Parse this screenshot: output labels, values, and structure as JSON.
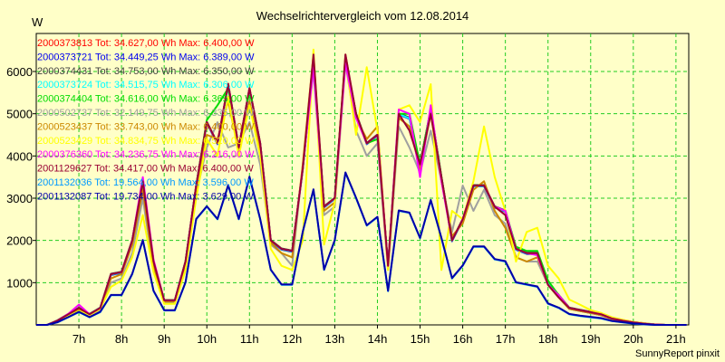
{
  "chart_data": {
    "type": "line",
    "title": "Wechselrichtervergleich vom 12.08.2014",
    "ylabel": "W",
    "footer": "SunnyReport pinxit",
    "ylim": [
      0,
      6900
    ],
    "xlim": [
      6,
      21.3
    ],
    "yticks": [
      1000,
      2000,
      3000,
      4000,
      5000,
      6000
    ],
    "xticks": [
      {
        "v": 7,
        "label": "7h"
      },
      {
        "v": 8,
        "label": "8h"
      },
      {
        "v": 9,
        "label": "9h"
      },
      {
        "v": 10,
        "label": "10h"
      },
      {
        "v": 11,
        "label": "11h"
      },
      {
        "v": 12,
        "label": "12h"
      },
      {
        "v": 13,
        "label": "13h"
      },
      {
        "v": 14,
        "label": "14h"
      },
      {
        "v": 15,
        "label": "15h"
      },
      {
        "v": 16,
        "label": "16h"
      },
      {
        "v": 17,
        "label": "17h"
      },
      {
        "v": 18,
        "label": "18h"
      },
      {
        "v": 19,
        "label": "19h"
      },
      {
        "v": 20,
        "label": "20h"
      },
      {
        "v": 21,
        "label": "21h"
      }
    ],
    "grid": true,
    "legend_position": "top-left",
    "x": [
      6.0,
      6.25,
      6.5,
      6.75,
      7.0,
      7.25,
      7.5,
      7.75,
      8.0,
      8.25,
      8.5,
      8.75,
      9.0,
      9.25,
      9.5,
      9.75,
      10.0,
      10.25,
      10.5,
      10.75,
      11.0,
      11.25,
      11.5,
      11.75,
      12.0,
      12.25,
      12.5,
      12.75,
      13.0,
      13.25,
      13.5,
      13.75,
      14.0,
      14.25,
      14.5,
      14.75,
      15.0,
      15.25,
      15.5,
      15.75,
      16.0,
      16.25,
      16.5,
      16.75,
      17.0,
      17.25,
      17.5,
      17.75,
      18.0,
      18.25,
      18.5,
      18.75,
      19.0,
      19.25,
      19.5,
      19.75,
      20.0,
      20.25,
      20.5,
      20.75,
      21.0,
      21.25
    ],
    "series": [
      {
        "label": "2000373813 Tot: 34.627,00 Wh Max: 6.400,00 W",
        "color": "#ff0000",
        "values": [
          0,
          0,
          100,
          250,
          400,
          250,
          400,
          1200,
          1250,
          2000,
          3400,
          1500,
          580,
          580,
          1500,
          3300,
          4800,
          4300,
          5700,
          4200,
          5600,
          4300,
          2000,
          1800,
          1750,
          3700,
          6200,
          2800,
          3000,
          6300,
          5000,
          4300,
          4500,
          1400,
          5000,
          4900,
          3800,
          5100,
          3500,
          2000,
          2500,
          3300,
          3300,
          2800,
          2700,
          1800,
          1700,
          1700,
          1000,
          700,
          400,
          350,
          300,
          250,
          150,
          100,
          60,
          30,
          10,
          0,
          0,
          0
        ]
      },
      {
        "label": "2000373721 Tot: 34.449,25 Wh Max: 6.389,00 W",
        "color": "#0000ee",
        "values": [
          0,
          0,
          90,
          240,
          390,
          240,
          390,
          1180,
          1230,
          1980,
          3380,
          1480,
          560,
          560,
          1480,
          3280,
          4780,
          4280,
          5680,
          4180,
          5580,
          4280,
          1980,
          1780,
          1730,
          3680,
          6180,
          2780,
          2980,
          6280,
          4980,
          4280,
          4480,
          1380,
          4980,
          4880,
          3780,
          5080,
          3480,
          1980,
          2480,
          3280,
          3280,
          2780,
          2680,
          1780,
          1680,
          1680,
          980,
          680,
          380,
          330,
          280,
          230,
          140,
          90,
          50,
          20,
          10,
          0,
          0,
          0
        ]
      },
      {
        "label": "2000374431 Tot: 34.753,00 Wh Max: 6.350,00 W",
        "color": "#404040",
        "values": [
          0,
          0,
          110,
          260,
          410,
          260,
          410,
          1210,
          1260,
          2010,
          3410,
          1510,
          590,
          590,
          1510,
          3310,
          4810,
          4310,
          5710,
          4210,
          5610,
          4310,
          2010,
          1810,
          1760,
          3710,
          6210,
          2810,
          3010,
          6310,
          5010,
          4310,
          4510,
          1410,
          5010,
          4910,
          3810,
          5110,
          3510,
          2010,
          2510,
          3310,
          3310,
          2810,
          2710,
          1810,
          1710,
          1710,
          1010,
          710,
          410,
          360,
          310,
          260,
          160,
          110,
          70,
          40,
          10,
          0,
          0,
          0
        ]
      },
      {
        "label": "2000373724 Tot: 34.515,75 Wh Max: 6.306,00 W",
        "color": "#00ffff",
        "values": [
          0,
          0,
          95,
          245,
          395,
          245,
          395,
          1190,
          1240,
          1990,
          3390,
          1490,
          570,
          570,
          1490,
          3290,
          4790,
          4290,
          5690,
          4190,
          5590,
          4290,
          1990,
          1790,
          1740,
          3690,
          6190,
          2790,
          2990,
          6290,
          4990,
          4290,
          4490,
          1390,
          4990,
          4890,
          3790,
          5090,
          3490,
          1990,
          2490,
          3290,
          3290,
          2790,
          2690,
          1790,
          1690,
          1690,
          990,
          690,
          390,
          340,
          290,
          240,
          145,
          95,
          55,
          25,
          10,
          0,
          0,
          0
        ]
      },
      {
        "label": "2000374404 Tot: 34.616,00 Wh Max: 6.365,00 W",
        "color": "#00dd00",
        "values": [
          0,
          0,
          100,
          250,
          400,
          250,
          400,
          1200,
          1250,
          2000,
          3400,
          1500,
          580,
          580,
          1500,
          3300,
          4850,
          5200,
          5600,
          4200,
          5600,
          4300,
          2000,
          1800,
          1750,
          3700,
          6250,
          2800,
          3000,
          6300,
          5000,
          4300,
          4400,
          1400,
          5000,
          5000,
          3800,
          5100,
          3500,
          2000,
          2500,
          3300,
          3300,
          2800,
          2700,
          1850,
          1750,
          1750,
          1050,
          700,
          400,
          350,
          300,
          250,
          150,
          100,
          60,
          30,
          10,
          0,
          0,
          0
        ]
      },
      {
        "label": "2000502737 Tot: 32.149,75 Wh Max: 6.335,00 W",
        "color": "#a0a0a0",
        "values": [
          0,
          0,
          80,
          220,
          350,
          230,
          350,
          1000,
          1100,
          1700,
          3000,
          1300,
          520,
          520,
          1300,
          3100,
          4200,
          4800,
          4200,
          4300,
          4800,
          3800,
          1900,
          1700,
          1400,
          3800,
          6000,
          2600,
          2800,
          6200,
          4600,
          4000,
          4300,
          1300,
          4700,
          4200,
          3600,
          4600,
          3400,
          2200,
          3300,
          2700,
          3200,
          2600,
          2400,
          1600,
          1500,
          1500,
          950,
          650,
          380,
          330,
          280,
          230,
          140,
          90,
          50,
          20,
          10,
          0,
          0,
          0
        ]
      },
      {
        "label": "2000523437 Tot: 33.743,00 Wh Max: 6.400,00 W",
        "color": "#cc8800",
        "values": [
          0,
          0,
          90,
          230,
          370,
          240,
          380,
          1100,
          1200,
          1900,
          3200,
          1400,
          550,
          550,
          1400,
          3200,
          4500,
          4400,
          5300,
          4100,
          5300,
          4100,
          1950,
          1700,
          1600,
          3800,
          6400,
          2700,
          2900,
          6400,
          4900,
          4400,
          4700,
          1350,
          4900,
          4700,
          3700,
          5000,
          3400,
          2100,
          2400,
          3200,
          3400,
          2700,
          2300,
          1600,
          1500,
          1600,
          950,
          650,
          380,
          330,
          280,
          230,
          140,
          90,
          50,
          20,
          10,
          0,
          0,
          0
        ]
      },
      {
        "label": "2000523429 Tot: 34.834,75 Wh Max: 6.520,00 W",
        "color": "#ffff00",
        "values": [
          0,
          0,
          80,
          200,
          330,
          220,
          380,
          900,
          1050,
          1600,
          2600,
          1250,
          500,
          500,
          1300,
          3000,
          4400,
          4000,
          5400,
          4000,
          5200,
          4000,
          1800,
          1400,
          1300,
          2000,
          6520,
          1900,
          2900,
          6300,
          4500,
          6100,
          4600,
          1300,
          5100,
          5200,
          4800,
          5700,
          1300,
          2700,
          2500,
          3400,
          4700,
          3500,
          2700,
          1500,
          2200,
          2300,
          1400,
          1100,
          600,
          480,
          350,
          280,
          180,
          120,
          70,
          40,
          10,
          0,
          0,
          0
        ]
      },
      {
        "label": "2000376360 Tot: 34.236,75 Wh Max: 6.216,00 W",
        "color": "#ff00ff",
        "values": [
          0,
          0,
          100,
          260,
          480,
          250,
          400,
          1200,
          1250,
          2000,
          3500,
          1550,
          580,
          580,
          1500,
          3300,
          4800,
          4300,
          5700,
          4200,
          5600,
          4300,
          2000,
          1800,
          1750,
          3700,
          6100,
          2800,
          3000,
          6200,
          4900,
          4300,
          4500,
          1400,
          5100,
          5000,
          3500,
          5200,
          3400,
          2000,
          2500,
          3300,
          3300,
          2800,
          2700,
          1800,
          1700,
          1650,
          950,
          700,
          400,
          350,
          300,
          250,
          150,
          100,
          60,
          30,
          10,
          0,
          0,
          0
        ]
      },
      {
        "label": "2001129627 Tot: 34.417,00 Wh Max: 6.400,00 W",
        "color": "#990033",
        "values": [
          0,
          0,
          100,
          250,
          400,
          250,
          400,
          1200,
          1250,
          2000,
          3400,
          1500,
          580,
          580,
          1500,
          3300,
          4800,
          4300,
          5700,
          4200,
          5600,
          4300,
          2000,
          1800,
          1750,
          3700,
          6400,
          2800,
          3000,
          6400,
          5000,
          4300,
          4500,
          1400,
          5000,
          4600,
          3800,
          5000,
          3500,
          2000,
          2500,
          3300,
          3300,
          2800,
          2600,
          1800,
          1700,
          1700,
          950,
          650,
          400,
          350,
          300,
          250,
          150,
          100,
          60,
          30,
          10,
          0,
          0,
          0
        ]
      },
      {
        "label": "2001132036 Tot: 19.564,00 Wh Max: 3.596,00 W",
        "color": "#0099ff",
        "values": [
          0,
          0,
          60,
          180,
          300,
          180,
          300,
          700,
          700,
          1200,
          2000,
          800,
          340,
          340,
          1000,
          2500,
          2800,
          2500,
          3300,
          2500,
          3500,
          2500,
          1300,
          950,
          950,
          2200,
          3200,
          1300,
          2000,
          3600,
          3000,
          2350,
          2550,
          800,
          2700,
          2650,
          2050,
          2950,
          2050,
          1100,
          1400,
          1850,
          1850,
          1550,
          1500,
          1000,
          950,
          900,
          500,
          400,
          250,
          210,
          180,
          150,
          90,
          60,
          30,
          10,
          0,
          0,
          0,
          0
        ]
      },
      {
        "label": "2001132087 Tot: 19.734,00 Wh Max: 3.629,00 W",
        "color": "#0000aa",
        "values": [
          0,
          0,
          65,
          185,
          310,
          185,
          310,
          710,
          710,
          1210,
          2010,
          810,
          350,
          350,
          1010,
          2510,
          2810,
          2510,
          3310,
          2510,
          3510,
          2510,
          1310,
          960,
          960,
          2210,
          3210,
          1310,
          2010,
          3610,
          3010,
          2360,
          2560,
          810,
          2710,
          2660,
          2060,
          2960,
          2060,
          1110,
          1410,
          1860,
          1860,
          1560,
          1510,
          1010,
          960,
          910,
          510,
          410,
          260,
          220,
          190,
          160,
          95,
          65,
          35,
          15,
          0,
          0,
          0,
          0
        ]
      }
    ]
  }
}
